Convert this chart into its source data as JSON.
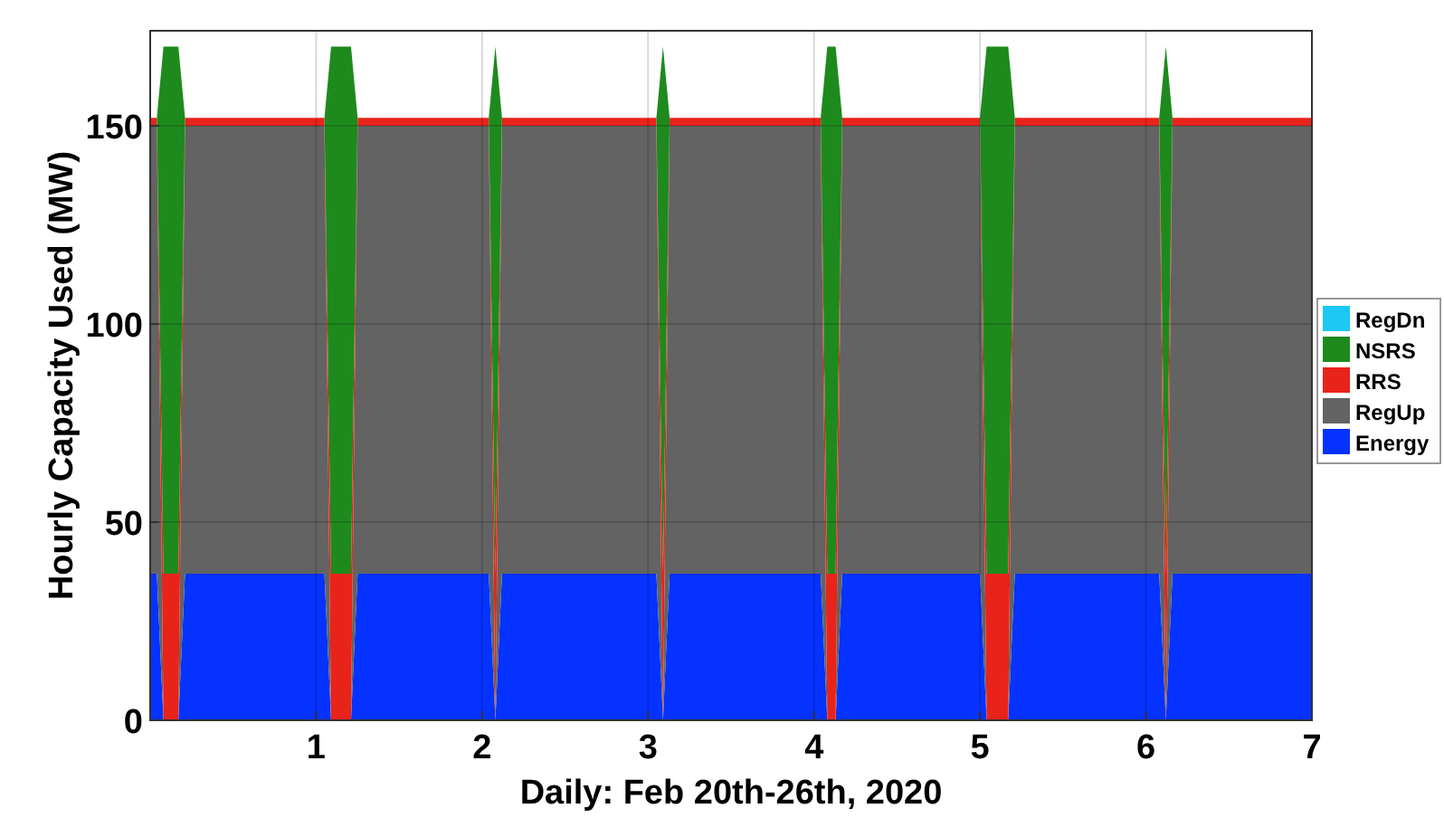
{
  "chart_data": {
    "type": "area",
    "stacked": true,
    "xlabel": "Daily: Feb 20th-26th, 2020",
    "ylabel": "Hourly Capacity Used (MW)",
    "x": [
      0,
      0.04,
      0.08,
      0.17,
      0.21,
      1.05,
      1.09,
      1.21,
      1.25,
      2.04,
      2.08,
      2.12,
      3.05,
      3.09,
      3.13,
      4.04,
      4.08,
      4.13,
      4.17,
      5.0,
      5.04,
      5.17,
      5.21,
      6.08,
      6.12,
      6.16,
      7
    ],
    "xlim": [
      0,
      7
    ],
    "xticks": [
      1,
      2,
      3,
      4,
      5,
      6,
      7
    ],
    "ylim": [
      0,
      174
    ],
    "yticks": [
      0,
      50,
      100,
      150
    ],
    "grid": true,
    "legend": "right",
    "series": [
      {
        "name": "Energy",
        "color": "#0532ff",
        "values": [
          37,
          37,
          0,
          0,
          37,
          37,
          0,
          0,
          37,
          37,
          0,
          37,
          37,
          0,
          37,
          37,
          0,
          0,
          37,
          37,
          0,
          0,
          37,
          37,
          0,
          37,
          37
        ]
      },
      {
        "name": "RegUp",
        "color": "#636363",
        "values": [
          113,
          113,
          0,
          0,
          113,
          113,
          0,
          0,
          113,
          113,
          0,
          113,
          113,
          0,
          113,
          113,
          0,
          0,
          113,
          113,
          0,
          0,
          113,
          113,
          0,
          113,
          113
        ]
      },
      {
        "name": "RRS",
        "color": "#e8231a",
        "values": [
          2,
          2,
          37,
          37,
          2,
          2,
          37,
          37,
          2,
          2,
          37,
          2,
          2,
          37,
          2,
          2,
          37,
          37,
          2,
          2,
          37,
          37,
          2,
          2,
          37,
          2,
          2
        ]
      },
      {
        "name": "NSRS",
        "color": "#1e8a1e",
        "values": [
          0,
          0,
          133,
          133,
          0,
          0,
          133,
          133,
          0,
          0,
          133,
          0,
          0,
          133,
          0,
          0,
          133,
          133,
          0,
          0,
          133,
          133,
          0,
          0,
          133,
          0,
          0
        ]
      },
      {
        "name": "RegDn",
        "color": "#1ec8f5",
        "values": [
          null,
          null,
          null,
          null,
          null,
          null,
          null,
          null,
          null,
          null,
          null,
          null,
          null,
          null,
          null,
          null,
          null,
          null,
          null,
          null,
          null,
          null,
          null,
          null,
          null,
          null,
          null
        ]
      }
    ]
  }
}
